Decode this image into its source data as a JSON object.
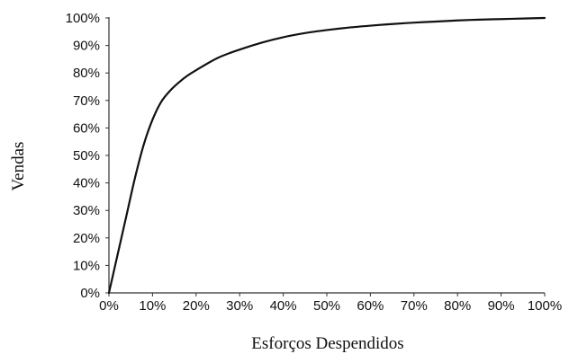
{
  "chart_data": {
    "type": "line",
    "title": "",
    "xlabel": "Esforços Despendidos",
    "ylabel": "Vendas",
    "xlim": [
      0,
      100
    ],
    "ylim": [
      0,
      100
    ],
    "grid": false,
    "legend": "none",
    "x_ticks": [
      "0%",
      "10%",
      "20%",
      "30%",
      "40%",
      "50%",
      "60%",
      "70%",
      "80%",
      "90%",
      "100%"
    ],
    "y_ticks": [
      "0%",
      "10%",
      "20%",
      "30%",
      "40%",
      "50%",
      "60%",
      "70%",
      "80%",
      "90%",
      "100%"
    ],
    "series": [
      {
        "color": "#111111",
        "x": [
          0,
          2,
          4,
          6,
          8,
          10,
          12,
          14,
          16,
          18,
          20,
          25,
          30,
          35,
          40,
          45,
          50,
          55,
          60,
          65,
          70,
          75,
          80,
          85,
          90,
          95,
          100
        ],
        "y": [
          0,
          14,
          28,
          42,
          54,
          63,
          69.5,
          73.5,
          76.5,
          79,
          81,
          85.5,
          88.5,
          91,
          93,
          94.5,
          95.6,
          96.5,
          97.2,
          97.8,
          98.3,
          98.7,
          99.1,
          99.4,
          99.6,
          99.8,
          100
        ]
      }
    ]
  }
}
